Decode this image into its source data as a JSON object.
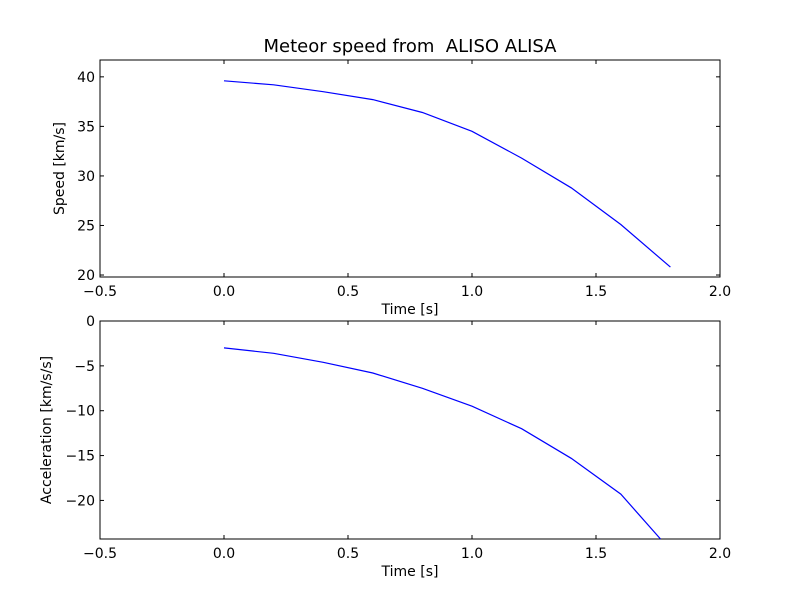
{
  "chart_data": [
    {
      "type": "line",
      "title": "Meteor speed from  ALISO ALISA",
      "xlabel": "Time [s]",
      "ylabel": "Speed [km/s]",
      "xlim": [
        -0.5,
        2.0
      ],
      "ylim": [
        19.8,
        41.7
      ],
      "xticks": [
        -0.5,
        0.0,
        0.5,
        1.0,
        1.5,
        2.0
      ],
      "xtick_labels": [
        "−0.5",
        "0.0",
        "0.5",
        "1.0",
        "1.5",
        "2.0"
      ],
      "yticks": [
        20,
        25,
        30,
        35,
        40
      ],
      "ytick_labels": [
        "20",
        "25",
        "30",
        "35",
        "40"
      ],
      "grid": false,
      "series": [
        {
          "color": "#0000ff",
          "x": [
            0.0,
            0.2,
            0.4,
            0.6,
            0.8,
            1.0,
            1.2,
            1.4,
            1.6,
            1.8
          ],
          "y": [
            39.6,
            39.2,
            38.5,
            37.7,
            36.4,
            34.5,
            31.8,
            28.8,
            25.1,
            20.8
          ]
        }
      ]
    },
    {
      "type": "line",
      "title": "",
      "xlabel": "Time [s]",
      "ylabel": "Acceleration [km/s/s]",
      "xlim": [
        -0.5,
        2.0
      ],
      "ylim": [
        -24.3,
        0.0
      ],
      "xticks": [
        -0.5,
        0.0,
        0.5,
        1.0,
        1.5,
        2.0
      ],
      "xtick_labels": [
        "−0.5",
        "0.0",
        "0.5",
        "1.0",
        "1.5",
        "2.0"
      ],
      "yticks": [
        0,
        -5,
        -10,
        -15,
        -20
      ],
      "ytick_labels": [
        "0",
        "−5",
        "−10",
        "−15",
        "−20"
      ],
      "grid": false,
      "series": [
        {
          "color": "#0000ff",
          "x": [
            0.0,
            0.2,
            0.4,
            0.6,
            0.8,
            1.0,
            1.2,
            1.4,
            1.6,
            1.76
          ],
          "y": [
            -3.0,
            -3.6,
            -4.6,
            -5.8,
            -7.5,
            -9.5,
            -12.0,
            -15.3,
            -19.3,
            -24.3
          ]
        }
      ]
    }
  ]
}
